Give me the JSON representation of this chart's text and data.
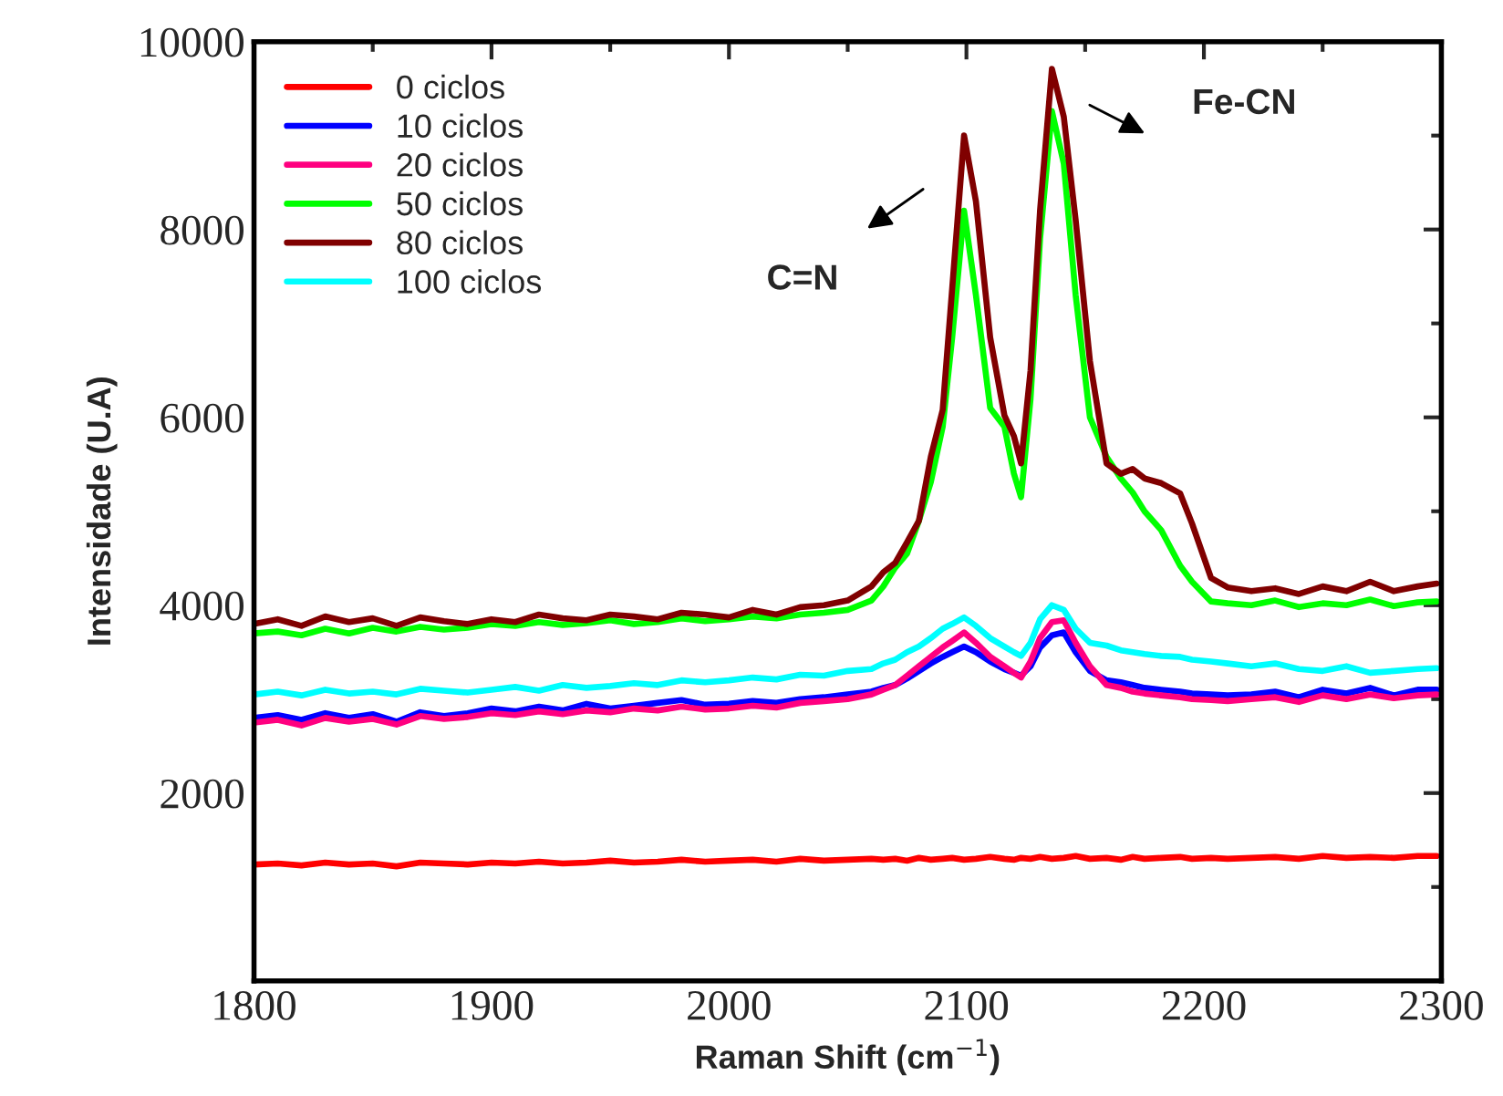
{
  "chart_data": {
    "type": "line",
    "xlabel": "Raman Shift (cm$^{−1}$)",
    "ylabel": "Intensidade (U.A)",
    "xlim": [
      1800,
      2300
    ],
    "xticks": [
      1800,
      1900,
      2000,
      2100,
      2200,
      2300
    ],
    "ylim": [
      0,
      10000
    ],
    "yticks": [
      {
        "value": 0,
        "label": null
      },
      2000,
      4000,
      6000,
      8000,
      10000
    ],
    "grid": false,
    "legend": "top left",
    "marker": "none",
    "line_style": "solid",
    "x": [
      1800,
      1810,
      1820,
      1830,
      1840,
      1850,
      1860,
      1870,
      1880,
      1890,
      1900,
      1910,
      1920,
      1930,
      1940,
      1950,
      1960,
      1970,
      1980,
      1990,
      2000,
      2010,
      2020,
      2030,
      2040,
      2050,
      2060,
      2065,
      2070,
      2075,
      2080,
      2085,
      2090,
      2094,
      2099,
      2104,
      2110,
      2116,
      2120,
      2123,
      2127,
      2131,
      2136,
      2141,
      2146,
      2152,
      2159,
      2165,
      2170,
      2175,
      2182,
      2190,
      2195,
      2203,
      2210,
      2220,
      2230,
      2240,
      2250,
      2260,
      2270,
      2280,
      2290,
      2298
    ],
    "series": [
      {
        "name": "0 ciclos",
        "color": "#ff0000",
        "values": [
          1240,
          1250,
          1230,
          1260,
          1240,
          1250,
          1220,
          1260,
          1250,
          1240,
          1260,
          1250,
          1270,
          1250,
          1260,
          1280,
          1260,
          1270,
          1290,
          1270,
          1280,
          1290,
          1270,
          1300,
          1280,
          1290,
          1300,
          1290,
          1300,
          1280,
          1310,
          1290,
          1300,
          1310,
          1290,
          1300,
          1320,
          1300,
          1290,
          1310,
          1300,
          1320,
          1300,
          1310,
          1330,
          1300,
          1310,
          1290,
          1320,
          1300,
          1310,
          1320,
          1300,
          1310,
          1300,
          1310,
          1320,
          1300,
          1330,
          1310,
          1320,
          1310,
          1330,
          1330
        ]
      },
      {
        "name": "10 ciclos",
        "color": "#0000ff",
        "values": [
          2800,
          2830,
          2780,
          2850,
          2800,
          2840,
          2760,
          2860,
          2820,
          2850,
          2900,
          2870,
          2920,
          2880,
          2950,
          2900,
          2930,
          2960,
          2990,
          2940,
          2950,
          2980,
          2960,
          3000,
          3020,
          3050,
          3080,
          3120,
          3150,
          3220,
          3300,
          3380,
          3450,
          3500,
          3560,
          3500,
          3400,
          3320,
          3280,
          3250,
          3350,
          3550,
          3680,
          3710,
          3500,
          3300,
          3200,
          3180,
          3150,
          3120,
          3100,
          3080,
          3060,
          3050,
          3040,
          3050,
          3080,
          3020,
          3100,
          3060,
          3120,
          3040,
          3100,
          3100
        ]
      },
      {
        "name": "20 ciclos",
        "color": "#ff0080",
        "values": [
          2750,
          2780,
          2720,
          2800,
          2760,
          2790,
          2730,
          2820,
          2790,
          2810,
          2850,
          2830,
          2870,
          2840,
          2880,
          2860,
          2900,
          2880,
          2920,
          2890,
          2900,
          2930,
          2910,
          2960,
          2980,
          3000,
          3050,
          3100,
          3150,
          3250,
          3350,
          3450,
          3550,
          3620,
          3710,
          3600,
          3450,
          3350,
          3280,
          3230,
          3400,
          3650,
          3820,
          3840,
          3600,
          3350,
          3150,
          3120,
          3080,
          3060,
          3040,
          3020,
          3000,
          2990,
          2980,
          3000,
          3020,
          2970,
          3040,
          3000,
          3050,
          3010,
          3040,
          3050
        ]
      },
      {
        "name": "50 ciclos",
        "color": "#00ff00",
        "values": [
          3700,
          3720,
          3680,
          3750,
          3700,
          3760,
          3720,
          3770,
          3740,
          3760,
          3800,
          3780,
          3820,
          3790,
          3810,
          3840,
          3800,
          3820,
          3860,
          3830,
          3850,
          3880,
          3860,
          3900,
          3920,
          3950,
          4050,
          4200,
          4400,
          4550,
          4900,
          5310,
          5900,
          6850,
          8200,
          7300,
          6100,
          5900,
          5400,
          5150,
          6200,
          7900,
          9260,
          8700,
          7300,
          6000,
          5580,
          5350,
          5200,
          5000,
          4800,
          4420,
          4250,
          4040,
          4020,
          4000,
          4050,
          3980,
          4020,
          4000,
          4060,
          3990,
          4030,
          4040
        ]
      },
      {
        "name": "80 ciclos",
        "color": "#800000",
        "values": [
          3800,
          3850,
          3780,
          3880,
          3820,
          3860,
          3780,
          3870,
          3830,
          3800,
          3850,
          3820,
          3900,
          3860,
          3840,
          3900,
          3880,
          3850,
          3920,
          3900,
          3870,
          3950,
          3900,
          3980,
          4000,
          4050,
          4200,
          4350,
          4450,
          4670,
          4900,
          5580,
          6080,
          7370,
          9000,
          8300,
          6850,
          6020,
          5800,
          5510,
          6500,
          8200,
          9710,
          9200,
          8100,
          6600,
          5510,
          5400,
          5450,
          5350,
          5300,
          5190,
          4870,
          4290,
          4190,
          4150,
          4180,
          4120,
          4200,
          4150,
          4250,
          4150,
          4200,
          4230
        ]
      },
      {
        "name": "100 ciclos",
        "color": "#00ffff",
        "values": [
          3050,
          3080,
          3040,
          3100,
          3060,
          3080,
          3050,
          3110,
          3090,
          3070,
          3100,
          3130,
          3090,
          3150,
          3120,
          3140,
          3170,
          3150,
          3200,
          3180,
          3200,
          3230,
          3210,
          3260,
          3250,
          3300,
          3320,
          3380,
          3420,
          3500,
          3560,
          3650,
          3750,
          3800,
          3870,
          3780,
          3650,
          3560,
          3500,
          3460,
          3600,
          3850,
          4000,
          3950,
          3750,
          3600,
          3570,
          3520,
          3500,
          3480,
          3460,
          3450,
          3420,
          3400,
          3380,
          3350,
          3380,
          3320,
          3300,
          3350,
          3280,
          3300,
          3320,
          3330
        ]
      }
    ],
    "annotations": [
      "C=N",
      "Fe-CN"
    ]
  }
}
